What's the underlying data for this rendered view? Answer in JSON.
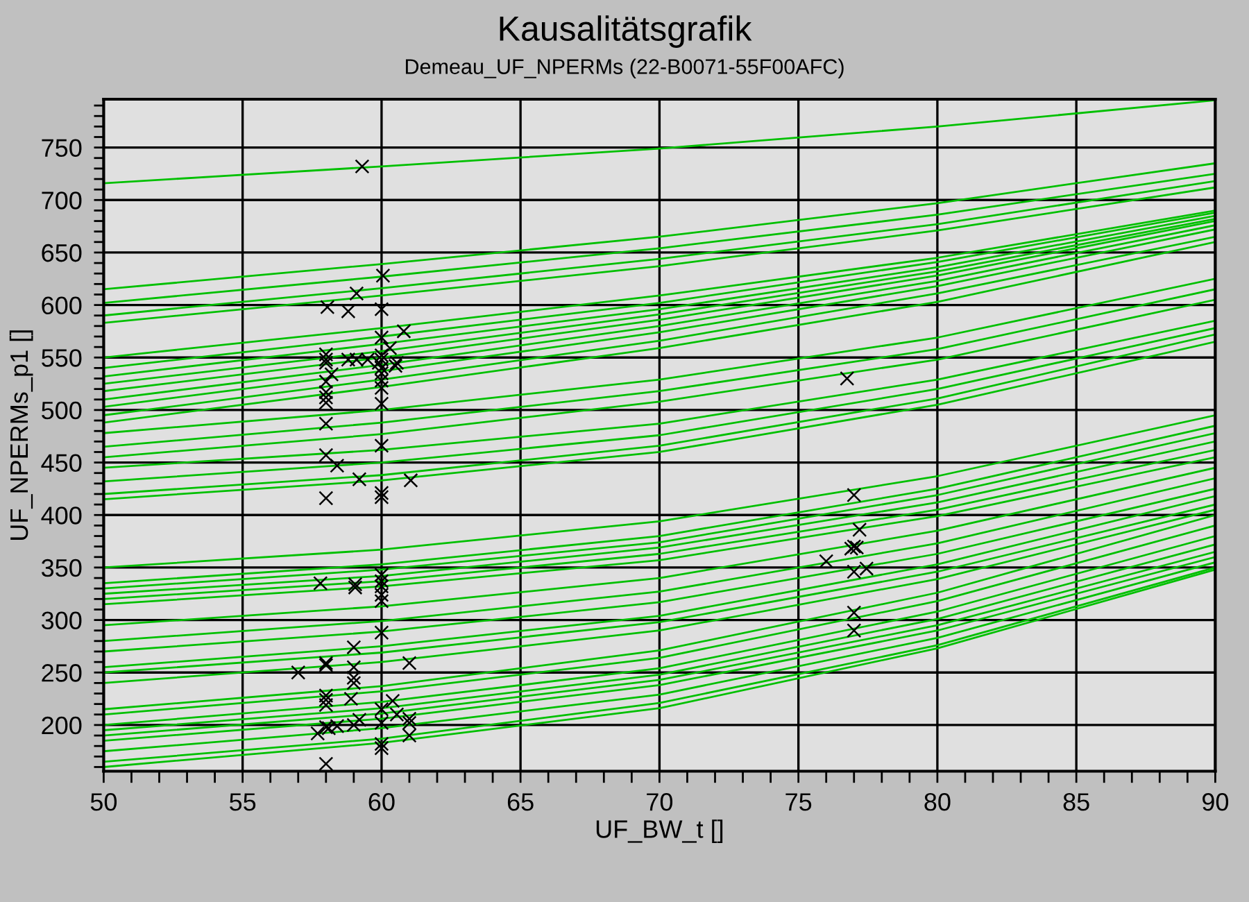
{
  "chart_data": {
    "type": "line",
    "title": "Kausalitätsgrafik",
    "subtitle": "Demeau_UF_NPERMs (22-B0071-55F00AFC)",
    "xlabel": "UF_BW_t []",
    "ylabel": "UF_NPERMs_p1 []",
    "x": [
      50,
      60,
      70,
      80,
      90
    ],
    "xlim": [
      50,
      90
    ],
    "ylim": [
      156,
      796
    ],
    "xticks": [
      50,
      {
        "value": 51,
        "label": null
      },
      {
        "value": 52,
        "label": null
      },
      {
        "value": 53,
        "label": null
      },
      {
        "value": 54,
        "label": null
      },
      55,
      {
        "value": 56,
        "label": null
      },
      {
        "value": 57,
        "label": null
      },
      {
        "value": 58,
        "label": null
      },
      {
        "value": 59,
        "label": null
      },
      60,
      {
        "value": 61,
        "label": null
      },
      {
        "value": 62,
        "label": null
      },
      {
        "value": 63,
        "label": null
      },
      {
        "value": 64,
        "label": null
      },
      65,
      {
        "value": 66,
        "label": null
      },
      {
        "value": 67,
        "label": null
      },
      {
        "value": 68,
        "label": null
      },
      {
        "value": 69,
        "label": null
      },
      70,
      {
        "value": 71,
        "label": null
      },
      {
        "value": 72,
        "label": null
      },
      {
        "value": 73,
        "label": null
      },
      {
        "value": 74,
        "label": null
      },
      75,
      {
        "value": 76,
        "label": null
      },
      {
        "value": 77,
        "label": null
      },
      {
        "value": 78,
        "label": null
      },
      {
        "value": 79,
        "label": null
      },
      80,
      {
        "value": 81,
        "label": null
      },
      {
        "value": 82,
        "label": null
      },
      {
        "value": 83,
        "label": null
      },
      {
        "value": 84,
        "label": null
      },
      85,
      {
        "value": 86,
        "label": null
      },
      {
        "value": 87,
        "label": null
      },
      {
        "value": 88,
        "label": null
      },
      {
        "value": 89,
        "label": null
      },
      90
    ],
    "yticks": [
      {
        "value": 160,
        "label": null
      },
      {
        "value": 170,
        "label": null
      },
      {
        "value": 180,
        "label": null
      },
      {
        "value": 190,
        "label": null
      },
      200,
      {
        "value": 210,
        "label": null
      },
      {
        "value": 220,
        "label": null
      },
      {
        "value": 230,
        "label": null
      },
      {
        "value": 240,
        "label": null
      },
      250,
      {
        "value": 260,
        "label": null
      },
      {
        "value": 270,
        "label": null
      },
      {
        "value": 280,
        "label": null
      },
      {
        "value": 290,
        "label": null
      },
      300,
      {
        "value": 310,
        "label": null
      },
      {
        "value": 320,
        "label": null
      },
      {
        "value": 330,
        "label": null
      },
      {
        "value": 340,
        "label": null
      },
      350,
      {
        "value": 360,
        "label": null
      },
      {
        "value": 370,
        "label": null
      },
      {
        "value": 380,
        "label": null
      },
      {
        "value": 390,
        "label": null
      },
      400,
      {
        "value": 410,
        "label": null
      },
      {
        "value": 420,
        "label": null
      },
      {
        "value": 430,
        "label": null
      },
      {
        "value": 440,
        "label": null
      },
      450,
      {
        "value": 460,
        "label": null
      },
      {
        "value": 470,
        "label": null
      },
      {
        "value": 480,
        "label": null
      },
      {
        "value": 490,
        "label": null
      },
      500,
      {
        "value": 510,
        "label": null
      },
      {
        "value": 520,
        "label": null
      },
      {
        "value": 530,
        "label": null
      },
      {
        "value": 540,
        "label": null
      },
      550,
      {
        "value": 560,
        "label": null
      },
      {
        "value": 570,
        "label": null
      },
      {
        "value": 580,
        "label": null
      },
      {
        "value": 590,
        "label": null
      },
      600,
      {
        "value": 610,
        "label": null
      },
      {
        "value": 620,
        "label": null
      },
      {
        "value": 630,
        "label": null
      },
      {
        "value": 640,
        "label": null
      },
      650,
      {
        "value": 660,
        "label": null
      },
      {
        "value": 670,
        "label": null
      },
      {
        "value": 680,
        "label": null
      },
      {
        "value": 690,
        "label": null
      },
      700,
      {
        "value": 710,
        "label": null
      },
      {
        "value": 720,
        "label": null
      },
      {
        "value": 730,
        "label": null
      },
      {
        "value": 740,
        "label": null
      },
      750,
      {
        "value": 760,
        "label": null
      },
      {
        "value": 770,
        "label": null
      },
      {
        "value": 780,
        "label": null
      },
      {
        "value": 790,
        "label": null
      }
    ],
    "grid": true,
    "legend": false,
    "marker": "none",
    "line_style": "solid",
    "series": [
      {
        "color": "#00c000",
        "values": [
          716,
          732,
          749,
          770,
          795
        ]
      },
      {
        "color": "#00c000",
        "values": [
          615,
          639,
          665,
          697,
          735
        ]
      },
      {
        "color": "#00c000",
        "values": [
          602,
          627,
          654,
          686,
          725
        ]
      },
      {
        "color": "#00c000",
        "values": [
          590,
          616,
          644,
          677,
          718
        ]
      },
      {
        "color": "#00c000",
        "values": [
          583,
          609,
          637,
          671,
          712
        ]
      },
      {
        "color": "#00c000",
        "values": [
          550,
          578,
          609,
          645,
          690
        ]
      },
      {
        "color": "#00c000",
        "values": [
          540,
          570,
          602,
          641,
          688
        ]
      },
      {
        "color": "#00c000",
        "values": [
          532,
          563,
          596,
          636,
          685
        ]
      },
      {
        "color": "#00c000",
        "values": [
          525,
          556,
          591,
          632,
          682
        ]
      },
      {
        "color": "#00c000",
        "values": [
          518,
          550,
          586,
          628,
          680
        ]
      },
      {
        "color": "#00c000",
        "values": [
          510,
          543,
          580,
          623,
          676
        ]
      },
      {
        "color": "#00c000",
        "values": [
          503,
          537,
          574,
          618,
          672
        ]
      },
      {
        "color": "#00c000",
        "values": [
          495,
          529,
          566,
          611,
          665
        ]
      },
      {
        "color": "#00c000",
        "values": [
          488,
          522,
          559,
          603,
          660
        ]
      },
      {
        "color": "#00c000",
        "values": [
          478,
          500,
          529,
          569,
          625
        ]
      },
      {
        "color": "#00c000",
        "values": [
          465,
          488,
          518,
          558,
          615
        ]
      },
      {
        "color": "#00c000",
        "values": [
          455,
          477,
          508,
          548,
          605
        ]
      },
      {
        "color": "#00c000",
        "values": [
          445,
          462,
          487,
          529,
          585
        ]
      },
      {
        "color": "#00c000",
        "values": [
          432,
          450,
          476,
          520,
          578
        ]
      },
      {
        "color": "#00c000",
        "values": [
          420,
          438,
          466,
          511,
          572
        ]
      },
      {
        "color": "#00c000",
        "values": [
          415,
          433,
          460,
          505,
          565
        ]
      },
      {
        "color": "#00c000",
        "values": [
          350,
          367,
          394,
          437,
          495
        ]
      },
      {
        "color": "#00c000",
        "values": [
          335,
          353,
          380,
          425,
          485
        ]
      },
      {
        "color": "#00c000",
        "values": [
          330,
          348,
          374,
          419,
          478
        ]
      },
      {
        "color": "#00c000",
        "values": [
          325,
          342,
          369,
          412,
          470
        ]
      },
      {
        "color": "#00c000",
        "values": [
          320,
          337,
          363,
          405,
          462
        ]
      },
      {
        "color": "#00c000",
        "values": [
          315,
          332,
          357,
          399,
          455
        ]
      },
      {
        "color": "#00c000",
        "values": [
          295,
          313,
          340,
          385,
          445
        ]
      },
      {
        "color": "#00c000",
        "values": [
          280,
          299,
          327,
          373,
          435
        ]
      },
      {
        "color": "#00c000",
        "values": [
          270,
          289,
          317,
          363,
          425
        ]
      },
      {
        "color": "#00c000",
        "values": [
          255,
          275,
          304,
          353,
          418
        ]
      },
      {
        "color": "#00c000",
        "values": [
          250,
          269,
          298,
          346,
          410
        ]
      },
      {
        "color": "#00c000",
        "values": [
          240,
          260,
          290,
          339,
          405
        ]
      },
      {
        "color": "#00c000",
        "values": [
          215,
          237,
          271,
          326,
          400
        ]
      },
      {
        "color": "#00c000",
        "values": [
          210,
          232,
          264,
          318,
          390
        ]
      },
      {
        "color": "#00c000",
        "values": [
          200,
          222,
          254,
          308,
          380
        ]
      },
      {
        "color": "#00c000",
        "values": [
          195,
          216,
          248,
          301,
          372
        ]
      },
      {
        "color": "#00c000",
        "values": [
          190,
          211,
          243,
          295,
          365
        ]
      },
      {
        "color": "#00c000",
        "values": [
          185,
          206,
          238,
          290,
          360
        ]
      },
      {
        "color": "#00c000",
        "values": [
          175,
          197,
          229,
          283,
          355
        ]
      },
      {
        "color": "#00c000",
        "values": [
          165,
          187,
          221,
          276,
          350
        ]
      },
      {
        "color": "#00c000",
        "values": [
          160,
          183,
          216,
          273,
          348
        ]
      },
      {
        "type": "scatter",
        "marker": "cross",
        "color": "#000000",
        "x": [
          59.3,
          60.05,
          59.1,
          58.05,
          58.8,
          60,
          60.8,
          60,
          60.3,
          58,
          58,
          58,
          58.8,
          59.1,
          59.5,
          59.9,
          60,
          60,
          60,
          60,
          60,
          60,
          60.5,
          60.55,
          58.2,
          58,
          58,
          58,
          58,
          60,
          58,
          58,
          58.4,
          59.2,
          61.05,
          60,
          58,
          60,
          60,
          57.8,
          59.05,
          59.05,
          60,
          60,
          60,
          60,
          60,
          60,
          59,
          57,
          58,
          58,
          59,
          59,
          59,
          61,
          58,
          58,
          58,
          58.9,
          60.4,
          60,
          60.55,
          61,
          61,
          61,
          57.7,
          58,
          58.1,
          58.4,
          59,
          59.2,
          60,
          60,
          60,
          58,
          77.0,
          77.2,
          77.0,
          77.1,
          76.9,
          76.0,
          77.0,
          77.45,
          77.0,
          77.0,
          76.75
        ],
        "values": [
          732,
          628,
          611,
          598,
          594,
          596,
          575,
          569,
          559,
          553,
          548,
          545,
          548,
          548,
          548,
          545,
          552,
          548,
          540,
          535,
          528,
          521,
          542,
          545,
          534,
          527,
          517,
          512,
          507,
          506,
          487,
          457,
          447,
          434,
          433,
          466,
          416,
          421,
          417,
          335,
          334,
          331,
          343,
          337,
          332,
          324,
          318,
          288,
          274,
          250,
          259,
          257,
          255,
          245,
          240,
          259,
          228,
          224,
          219,
          225,
          223,
          215,
          210,
          206,
          202,
          190,
          192,
          198,
          197,
          199,
          200,
          205,
          202,
          182,
          178,
          163,
          419,
          386,
          370,
          369,
          368,
          356,
          346,
          349,
          307,
          290,
          530
        ]
      }
    ]
  }
}
